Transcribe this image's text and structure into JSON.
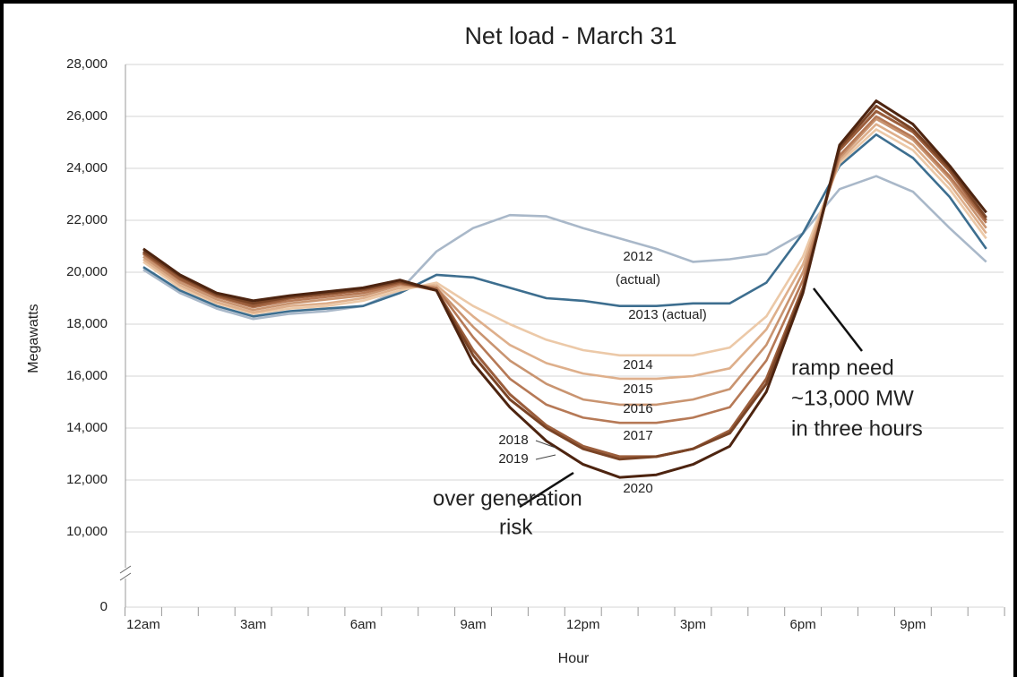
{
  "chart_data": {
    "type": "line",
    "title": "Net load - March 31",
    "x_label": "Hour",
    "y_label": "Megawatts",
    "categories": [
      "12am",
      null,
      null,
      "3am",
      null,
      null,
      "6am",
      null,
      null,
      "9am",
      null,
      null,
      "12pm",
      null,
      null,
      "3pm",
      null,
      null,
      "6pm",
      null,
      null,
      "9pm",
      null,
      null
    ],
    "ylim": [
      0,
      28000
    ],
    "axis_break": true,
    "grid": true,
    "yticks": [
      0,
      {
        "value": 10000,
        "label": "10,000"
      },
      {
        "value": 12000,
        "label": "12,000"
      },
      {
        "value": 14000,
        "label": "14,000"
      },
      {
        "value": 16000,
        "label": "16,000"
      },
      {
        "value": 18000,
        "label": "18,000"
      },
      {
        "value": 20000,
        "label": "20,000"
      },
      {
        "value": 22000,
        "label": "22,000"
      },
      {
        "value": 24000,
        "label": "24,000"
      },
      {
        "value": 26000,
        "label": "26,000"
      },
      {
        "value": 28000,
        "label": "28,000"
      }
    ],
    "series": [
      {
        "name": "2012 (actual)",
        "color": "#a9b8c9",
        "values": [
          20100,
          19200,
          18600,
          18200,
          18400,
          18500,
          18700,
          19300,
          20800,
          21700,
          22200,
          22150,
          21700,
          21300,
          20900,
          20400,
          20500,
          20700,
          21500,
          23200,
          23700,
          23100,
          21700,
          20400
        ]
      },
      {
        "name": "2013 (actual)",
        "color": "#3d6e8f",
        "values": [
          20200,
          19300,
          18700,
          18300,
          18500,
          18600,
          18700,
          19200,
          19900,
          19800,
          19400,
          19000,
          18900,
          18700,
          18700,
          18800,
          18800,
          19600,
          21500,
          24100,
          25300,
          24400,
          22900,
          20900
        ]
      },
      {
        "name": "2014",
        "color": "#ecc9a8",
        "values": [
          20400,
          19400,
          18800,
          18400,
          18600,
          18700,
          18900,
          19300,
          19600,
          18700,
          18000,
          17400,
          17000,
          16800,
          16800,
          16800,
          17100,
          18300,
          20600,
          24200,
          25500,
          24700,
          23200,
          21300
        ]
      },
      {
        "name": "2015",
        "color": "#deaf8b",
        "values": [
          20500,
          19500,
          18850,
          18450,
          18700,
          18800,
          19000,
          19400,
          19500,
          18300,
          17200,
          16500,
          16100,
          15900,
          15900,
          16000,
          16300,
          17800,
          20300,
          24300,
          25700,
          24900,
          23400,
          21500
        ]
      },
      {
        "name": "2016",
        "color": "#c99470",
        "values": [
          20600,
          19600,
          18950,
          18550,
          18800,
          18950,
          19100,
          19500,
          19400,
          17900,
          16600,
          15700,
          15100,
          14900,
          14900,
          15100,
          15500,
          17200,
          20000,
          24400,
          25900,
          25100,
          23600,
          21700
        ]
      },
      {
        "name": "2017",
        "color": "#b67956",
        "values": [
          20700,
          19700,
          19050,
          18650,
          18900,
          19050,
          19200,
          19550,
          19400,
          17500,
          15900,
          14900,
          14400,
          14200,
          14200,
          14400,
          14800,
          16600,
          19700,
          24500,
          26000,
          25200,
          23700,
          21900
        ]
      },
      {
        "name": "2018",
        "color": "#9b5e3c",
        "values": [
          20750,
          19750,
          19100,
          18700,
          19000,
          19150,
          19300,
          19600,
          19300,
          17000,
          15300,
          14100,
          13300,
          12900,
          12900,
          13200,
          13900,
          15900,
          19400,
          24700,
          26200,
          25400,
          23900,
          22000
        ]
      },
      {
        "name": "2019",
        "color": "#7a4426",
        "values": [
          20800,
          19850,
          19150,
          18800,
          19050,
          19200,
          19350,
          19650,
          19300,
          16800,
          15100,
          14000,
          13200,
          12800,
          12900,
          13200,
          13800,
          15700,
          19300,
          24800,
          26400,
          25500,
          24000,
          22100
        ]
      },
      {
        "name": "2020",
        "color": "#4d2410",
        "values": [
          20900,
          19900,
          19200,
          18900,
          19100,
          19250,
          19400,
          19700,
          19300,
          16500,
          14800,
          13500,
          12600,
          12100,
          12200,
          12600,
          13300,
          15400,
          19200,
          24900,
          26600,
          25700,
          24100,
          22300
        ]
      }
    ],
    "annotations": [
      {
        "lines": [
          "over generation",
          "risk"
        ]
      },
      {
        "lines": [
          "ramp need",
          "~13,000 MW",
          "in three hours"
        ]
      }
    ]
  }
}
